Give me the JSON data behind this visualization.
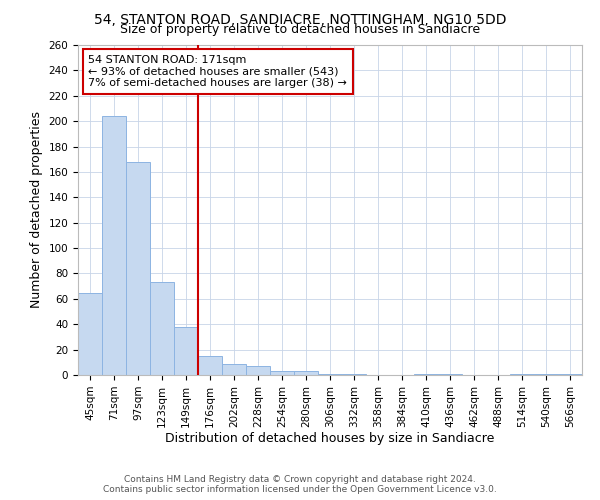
{
  "title_line1": "54, STANTON ROAD, SANDIACRE, NOTTINGHAM, NG10 5DD",
  "title_line2": "Size of property relative to detached houses in Sandiacre",
  "xlabel": "Distribution of detached houses by size in Sandiacre",
  "ylabel": "Number of detached properties",
  "footer_line1": "Contains HM Land Registry data © Crown copyright and database right 2024.",
  "footer_line2": "Contains public sector information licensed under the Open Government Licence v3.0.",
  "bins": [
    "45sqm",
    "71sqm",
    "97sqm",
    "123sqm",
    "149sqm",
    "176sqm",
    "202sqm",
    "228sqm",
    "254sqm",
    "280sqm",
    "306sqm",
    "332sqm",
    "358sqm",
    "384sqm",
    "410sqm",
    "436sqm",
    "462sqm",
    "488sqm",
    "514sqm",
    "540sqm",
    "566sqm"
  ],
  "values": [
    65,
    204,
    168,
    73,
    38,
    15,
    9,
    7,
    3,
    3,
    1,
    1,
    0,
    0,
    1,
    1,
    0,
    0,
    1,
    1,
    1
  ],
  "bar_color": "#c6d9f0",
  "bar_edge_color": "#8db4e2",
  "vline_x_index": 5,
  "vline_color": "#cc0000",
  "annotation_text": "54 STANTON ROAD: 171sqm\n← 93% of detached houses are smaller (543)\n7% of semi-detached houses are larger (38) →",
  "annotation_box_color": "#cc0000",
  "annotation_text_color": "#000000",
  "ylim": [
    0,
    260
  ],
  "yticks": [
    0,
    20,
    40,
    60,
    80,
    100,
    120,
    140,
    160,
    180,
    200,
    220,
    240,
    260
  ],
  "background_color": "#ffffff",
  "grid_color": "#c8d4e8",
  "title_fontsize": 10,
  "subtitle_fontsize": 9,
  "axis_label_fontsize": 9,
  "tick_fontsize": 7.5,
  "footer_fontsize": 6.5
}
